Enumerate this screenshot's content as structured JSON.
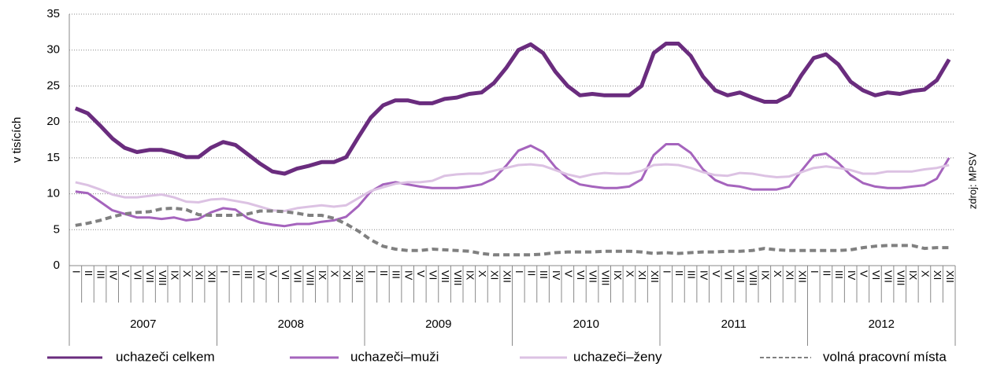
{
  "chart_data": {
    "type": "line",
    "y_label": "v tisících",
    "source": "zdroj: MPSV",
    "categories": [
      "I",
      "II",
      "III",
      "IV",
      "V",
      "VI",
      "VII",
      "VIII",
      "IX",
      "X",
      "XI",
      "XII",
      "I",
      "II",
      "III",
      "IV",
      "V",
      "VI",
      "VII",
      "VIII",
      "IX",
      "X",
      "XI",
      "XII",
      "I",
      "II",
      "III",
      "IV",
      "V",
      "VI",
      "VII",
      "VIII",
      "IX",
      "X",
      "XI",
      "XII",
      "I",
      "II",
      "III",
      "IV",
      "V",
      "VI",
      "VII",
      "VIII",
      "IX",
      "X",
      "XI",
      "XII",
      "I",
      "II",
      "III",
      "IV",
      "V",
      "VI",
      "VII",
      "VIII",
      "IX",
      "X",
      "XI",
      "XII",
      "I",
      "II",
      "III",
      "IV",
      "V",
      "VI",
      "VII",
      "VIII",
      "IX",
      "X",
      "XI",
      "XII"
    ],
    "years": [
      "2007",
      "2008",
      "2009",
      "2010",
      "2011",
      "2012"
    ],
    "ylim": [
      0,
      35
    ],
    "yticks": [
      0,
      5,
      10,
      15,
      20,
      25,
      30,
      35
    ],
    "grid": true,
    "legend": "bottom",
    "series": [
      {
        "name": "uchazeči celkem",
        "color": "#6a2c7e",
        "width": 5,
        "dash": false,
        "values": [
          21.9,
          21.2,
          19.5,
          17.7,
          16.4,
          15.8,
          16.1,
          16.1,
          15.7,
          15.1,
          15.1,
          16.4,
          17.2,
          16.8,
          15.5,
          14.2,
          13.1,
          12.8,
          13.5,
          13.9,
          14.4,
          14.4,
          15.1,
          17.9,
          20.6,
          22.3,
          23.0,
          23.0,
          22.6,
          22.6,
          23.2,
          23.4,
          23.9,
          24.1,
          25.4,
          27.5,
          30.0,
          30.8,
          29.6,
          27.0,
          25.0,
          23.7,
          23.9,
          23.7,
          23.7,
          23.7,
          25.0,
          29.6,
          30.9,
          30.9,
          29.2,
          26.3,
          24.4,
          23.7,
          24.1,
          23.4,
          22.8,
          22.8,
          23.7,
          26.5,
          28.9,
          29.4,
          28.0,
          25.6,
          24.4,
          23.7,
          24.1,
          23.9,
          24.3,
          24.5,
          25.8,
          28.7
        ]
      },
      {
        "name": "uchazeči–muži",
        "color": "#a564bd",
        "width": 3,
        "dash": false,
        "values": [
          10.3,
          10.1,
          8.9,
          7.7,
          7.2,
          6.7,
          6.7,
          6.5,
          6.7,
          6.3,
          6.5,
          7.4,
          8.0,
          7.8,
          6.6,
          6.0,
          5.7,
          5.5,
          5.8,
          5.8,
          6.1,
          6.3,
          6.8,
          8.3,
          10.3,
          11.3,
          11.6,
          11.3,
          11.0,
          10.8,
          10.8,
          10.8,
          11.0,
          11.3,
          12.1,
          13.9,
          16.0,
          16.7,
          15.8,
          13.7,
          12.2,
          11.3,
          11.0,
          10.8,
          10.8,
          11.0,
          12.0,
          15.4,
          16.9,
          16.9,
          15.7,
          13.4,
          11.9,
          11.2,
          11.0,
          10.6,
          10.6,
          10.6,
          11.0,
          13.2,
          15.3,
          15.6,
          14.3,
          12.6,
          11.5,
          11.0,
          10.8,
          10.8,
          11.0,
          11.2,
          12.1,
          15.0
        ]
      },
      {
        "name": "uchazeči–ženy",
        "color": "#dcc2e3",
        "width": 3,
        "dash": false,
        "values": [
          11.6,
          11.2,
          10.6,
          9.9,
          9.5,
          9.5,
          9.7,
          9.9,
          9.5,
          8.9,
          8.8,
          9.2,
          9.3,
          9.0,
          8.7,
          8.2,
          7.7,
          7.6,
          8.0,
          8.2,
          8.4,
          8.2,
          8.4,
          9.4,
          10.4,
          10.9,
          11.4,
          11.6,
          11.6,
          11.8,
          12.5,
          12.7,
          12.8,
          12.8,
          13.2,
          13.6,
          14.0,
          14.1,
          13.9,
          13.3,
          12.7,
          12.3,
          12.7,
          12.9,
          12.8,
          12.8,
          13.2,
          14.0,
          14.1,
          14.0,
          13.6,
          13.0,
          12.6,
          12.5,
          12.9,
          12.8,
          12.5,
          12.3,
          12.4,
          13.0,
          13.6,
          13.8,
          13.6,
          13.3,
          12.8,
          12.8,
          13.1,
          13.1,
          13.1,
          13.4,
          13.6,
          14.0
        ]
      },
      {
        "name": "volná pracovní místa",
        "color": "#808080",
        "width": 4,
        "dash": true,
        "values": [
          5.6,
          5.9,
          6.3,
          6.8,
          7.2,
          7.4,
          7.5,
          7.9,
          8.0,
          7.8,
          7.1,
          7.0,
          7.0,
          7.0,
          7.2,
          7.6,
          7.6,
          7.5,
          7.3,
          7.0,
          7.0,
          6.6,
          5.8,
          4.8,
          3.6,
          2.7,
          2.3,
          2.1,
          2.1,
          2.3,
          2.2,
          2.1,
          2.0,
          1.7,
          1.5,
          1.5,
          1.5,
          1.5,
          1.6,
          1.8,
          1.9,
          1.9,
          1.9,
          2.0,
          2.0,
          2.0,
          1.9,
          1.7,
          1.8,
          1.7,
          1.8,
          1.9,
          1.9,
          2.0,
          2.0,
          2.1,
          2.4,
          2.2,
          2.1,
          2.1,
          2.1,
          2.1,
          2.1,
          2.2,
          2.5,
          2.7,
          2.8,
          2.8,
          2.8,
          2.4,
          2.5,
          2.5
        ]
      }
    ]
  }
}
